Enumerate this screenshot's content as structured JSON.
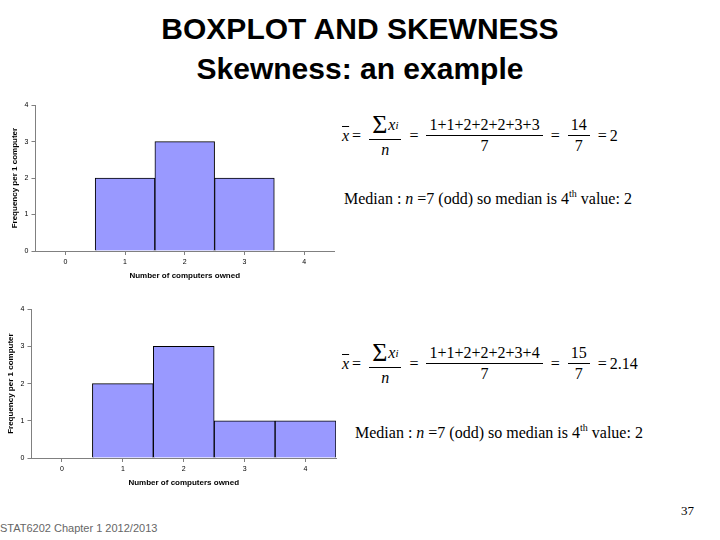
{
  "title": "BOXPLOT AND SKEWNESS",
  "subtitle": "Skewness: an example",
  "chart_data": [
    {
      "type": "histogram",
      "bins": [
        0.5,
        1.5,
        2.5,
        3.5
      ],
      "values": [
        2,
        3,
        2
      ],
      "color": "#9999ff",
      "x_label": "Number of computers owned",
      "y_label": "Frequency per 1 computer",
      "xlim": [
        -0.5,
        4.5
      ],
      "xticks": [
        0,
        1,
        2,
        3,
        4
      ],
      "ylim": [
        0,
        4
      ],
      "yticks": [
        0,
        1,
        2,
        3,
        4
      ],
      "grid": false
    },
    {
      "type": "histogram",
      "bins": [
        0.5,
        1.5,
        2.5,
        3.5,
        4.5
      ],
      "values": [
        2,
        3,
        1,
        1
      ],
      "color": "#9999ff",
      "x_label": "Number of computers owned",
      "y_label": "Frequency per 1 computer",
      "xlim": [
        -0.5,
        4.5
      ],
      "xticks": [
        0,
        1,
        2,
        3,
        4
      ],
      "ylim": [
        0,
        4
      ],
      "yticks": [
        0,
        1,
        2,
        3,
        4
      ],
      "grid": false
    }
  ],
  "notes": [
    {
      "formula": {
        "mean_symbol": "x",
        "equals": "=",
        "sum_symbol": "Σ",
        "variable": "x",
        "index": "i",
        "count": "n",
        "terms": "1+1+2+2+2+3+3",
        "n_value": "7",
        "sum": "14",
        "mean": "2"
      },
      "median": {
        "label": "Median : ",
        "count": "n",
        "text": " =7 (odd) so median is 4",
        "superscript": "th",
        "tail": " value: 2"
      }
    },
    {
      "formula": {
        "mean_symbol": "x",
        "equals": "=",
        "sum_symbol": "Σ",
        "variable": "x",
        "index": "i",
        "count": "n",
        "terms": "1+1+2+2+2+3+4",
        "n_value": "7",
        "sum": "15",
        "mean": "2.14"
      },
      "median": {
        "label": "Median : ",
        "count": "n",
        "text": " =7 (odd) so median is 4",
        "superscript": "th",
        "tail": " value: 2"
      }
    }
  ],
  "page_number": "37",
  "footer": "STAT6202 Chapter 1 2012/2013"
}
